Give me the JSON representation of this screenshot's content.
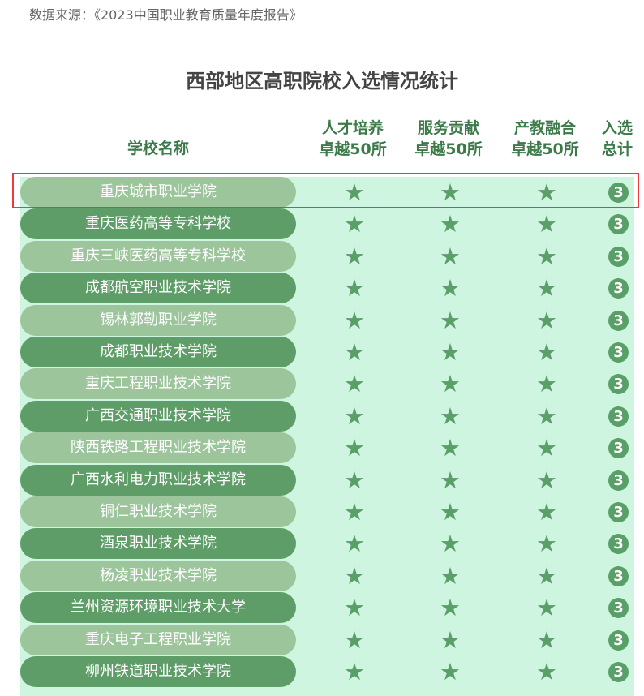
{
  "source": "数据来源：《2023中国职业教育质量年度报告》",
  "title": "西部地区高职院校入选情况统计",
  "headers": {
    "name": "学校名称",
    "col1": [
      "人才培养",
      "卓越50所"
    ],
    "col2": [
      "服务贡献",
      "卓越50所"
    ],
    "col3": [
      "产教融合",
      "卓越50所"
    ],
    "col4": [
      "入选",
      "总计"
    ]
  },
  "colors": {
    "light_pill": "#9cc59b",
    "dark_pill": "#5e9d68",
    "table_bg": "#cdf5e0",
    "star": "#5a9e68",
    "highlight": "#f03a3a"
  },
  "highlighted_row": 0,
  "rows": [
    {
      "name": "重庆城市职业学院",
      "c1": true,
      "c2": true,
      "c3": true,
      "total": "3"
    },
    {
      "name": "重庆医药高等专科学校",
      "c1": true,
      "c2": true,
      "c3": true,
      "total": "3"
    },
    {
      "name": "重庆三峡医药高等专科学校",
      "c1": true,
      "c2": true,
      "c3": true,
      "total": "3"
    },
    {
      "name": "成都航空职业技术学院",
      "c1": true,
      "c2": true,
      "c3": true,
      "total": "3"
    },
    {
      "name": "锡林郭勒职业学院",
      "c1": true,
      "c2": true,
      "c3": true,
      "total": "3"
    },
    {
      "name": "成都职业技术学院",
      "c1": true,
      "c2": true,
      "c3": true,
      "total": "3"
    },
    {
      "name": "重庆工程职业技术学院",
      "c1": true,
      "c2": true,
      "c3": true,
      "total": "3"
    },
    {
      "name": "广西交通职业技术学院",
      "c1": true,
      "c2": true,
      "c3": true,
      "total": "3"
    },
    {
      "name": "陕西铁路工程职业技术学院",
      "c1": true,
      "c2": true,
      "c3": true,
      "total": "3"
    },
    {
      "name": "广西水利电力职业技术学院",
      "c1": true,
      "c2": true,
      "c3": true,
      "total": "3"
    },
    {
      "name": "铜仁职业技术学院",
      "c1": true,
      "c2": true,
      "c3": true,
      "total": "3"
    },
    {
      "name": "酒泉职业技术学院",
      "c1": true,
      "c2": true,
      "c3": true,
      "total": "3"
    },
    {
      "name": "杨凌职业技术学院",
      "c1": true,
      "c2": true,
      "c3": true,
      "total": "3"
    },
    {
      "name": "兰州资源环境职业技术大学",
      "c1": true,
      "c2": true,
      "c3": true,
      "total": "3"
    },
    {
      "name": "重庆电子工程职业学院",
      "c1": true,
      "c2": true,
      "c3": true,
      "total": "3"
    },
    {
      "name": "柳州铁道职业技术学院",
      "c1": true,
      "c2": true,
      "c3": true,
      "total": "3"
    }
  ]
}
